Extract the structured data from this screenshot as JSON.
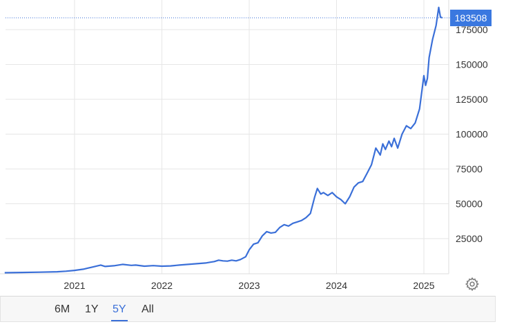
{
  "chart_data": {
    "type": "line",
    "title": "",
    "xlabel": "",
    "ylabel": "",
    "ylim": [
      0,
      190000
    ],
    "y_ticks": [
      25000,
      50000,
      75000,
      100000,
      125000,
      150000,
      175000
    ],
    "y_tick_labels": [
      "25000",
      "50000",
      "75000",
      "100000",
      "125000",
      "150000",
      "175000"
    ],
    "x_ticks": [
      2021,
      2022,
      2023,
      2024,
      2025
    ],
    "x_tick_labels": [
      "2021",
      "2022",
      "2023",
      "2024",
      "2025"
    ],
    "xlim": [
      2020.2,
      2025.45
    ],
    "grid": true,
    "line_color": "#3a6fd8",
    "last_value": 183508,
    "last_value_label": "183508",
    "series": [
      {
        "x": [
          2020.2,
          2020.4,
          2020.6,
          2020.8,
          2020.9,
          2021.0,
          2021.1,
          2021.2,
          2021.3,
          2021.35,
          2021.45,
          2021.55,
          2021.65,
          2021.7,
          2021.8,
          2021.9,
          2022.0,
          2022.1,
          2022.2,
          2022.3,
          2022.4,
          2022.5,
          2022.55,
          2022.6,
          2022.65,
          2022.7,
          2022.75,
          2022.8,
          2022.85,
          2022.9,
          2022.93,
          2022.96,
          2023.0,
          2023.05,
          2023.1,
          2023.15,
          2023.2,
          2023.25,
          2023.3,
          2023.35,
          2023.4,
          2023.45,
          2023.5,
          2023.55,
          2023.6,
          2023.65,
          2023.7,
          2023.75,
          2023.78,
          2023.82,
          2023.85,
          2023.9,
          2023.95,
          2024.0,
          2024.05,
          2024.1,
          2024.15,
          2024.2,
          2024.25,
          2024.3,
          2024.35,
          2024.4,
          2024.45,
          2024.5,
          2024.53,
          2024.56,
          2024.6,
          2024.63,
          2024.66,
          2024.7,
          2024.75,
          2024.8,
          2024.85,
          2024.9,
          2024.95,
          2025.0,
          2025.02,
          2025.04,
          2025.06,
          2025.1,
          2025.14,
          2025.17,
          2025.19,
          2025.21
        ],
        "y": [
          500,
          700,
          900,
          1200,
          1600,
          2200,
          3000,
          4500,
          6000,
          5000,
          5500,
          6500,
          5800,
          6000,
          5200,
          5600,
          5200,
          5400,
          6000,
          6500,
          7000,
          7500,
          8000,
          8500,
          9500,
          9000,
          8800,
          9500,
          9000,
          10000,
          11000,
          12000,
          17000,
          21000,
          22000,
          27000,
          30000,
          29000,
          29500,
          33000,
          35000,
          34000,
          36000,
          37000,
          38000,
          40000,
          43000,
          55000,
          61000,
          57000,
          58000,
          56000,
          58000,
          55000,
          53000,
          50000,
          55000,
          62000,
          65000,
          66000,
          72000,
          78000,
          90000,
          85000,
          93000,
          89000,
          95000,
          91000,
          97000,
          90000,
          100000,
          106000,
          104000,
          108000,
          118000,
          142000,
          135000,
          140000,
          155000,
          168000,
          178000,
          191000,
          184000,
          183508
        ]
      }
    ]
  },
  "range_buttons": [
    "6M",
    "1Y",
    "5Y",
    "All"
  ],
  "active_range": "5Y",
  "icons": {
    "settings": "gear-icon"
  }
}
